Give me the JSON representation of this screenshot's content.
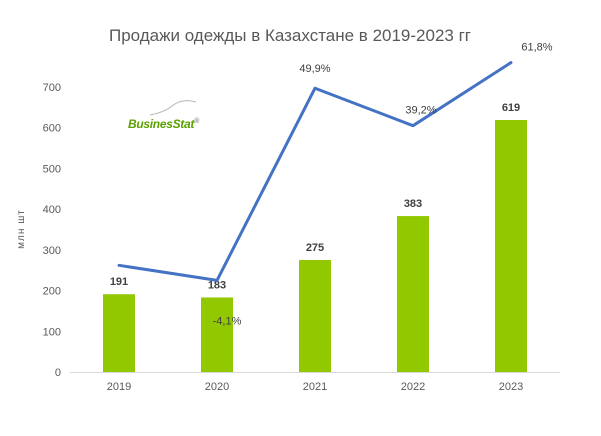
{
  "colors": {
    "bar": "#92c800",
    "line": "#4472c4",
    "text": "#595959",
    "logo_green": "#5aa000",
    "logo_gray": "#8c8c8c"
  },
  "logo": {
    "part1": "Busines",
    "part2": "Stat",
    "mark": "®"
  },
  "chart_data": {
    "type": "bar",
    "title": "Продажи одежды в Казахстане в 2019-2023 гг",
    "ylabel": "млн шт",
    "xlabel": "",
    "categories": [
      "2019",
      "2020",
      "2021",
      "2022",
      "2023"
    ],
    "ylim": [
      0,
      700
    ],
    "yticks": [
      0,
      100,
      200,
      300,
      400,
      500,
      600,
      700
    ],
    "ytick_labels": [
      "0",
      "100",
      "200",
      "300",
      "400",
      "500",
      "600",
      "700"
    ],
    "grid": false,
    "series": [
      {
        "type": "bar",
        "values": [
          191,
          183,
          275,
          383,
          619
        ],
        "labels": [
          "191",
          "183",
          "275",
          "383",
          "619"
        ]
      },
      {
        "type": "line",
        "axis": "secondary-hidden",
        "values": [
          null,
          -4.1,
          49.9,
          39.2,
          61.8
        ],
        "labels": [
          "",
          "-4,1%",
          "49,9%",
          "39,2%",
          "61,8%"
        ],
        "display_y": [
          262,
          225,
          697,
          605,
          760
        ]
      }
    ]
  }
}
